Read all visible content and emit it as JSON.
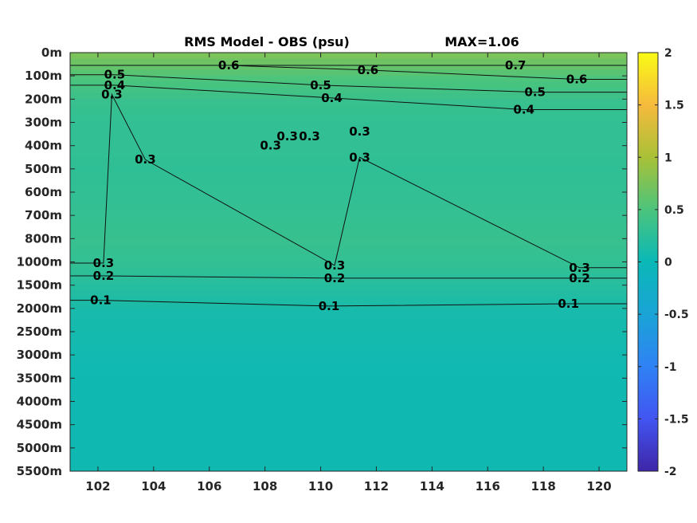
{
  "chart_data": {
    "type": "heatmap",
    "title": "RMS Model - OBS (psu)",
    "annotation": "MAX=1.06",
    "xlabel": "",
    "ylabel": "",
    "xlim": [
      101,
      121
    ],
    "x_ticks": [
      "102",
      "104",
      "106",
      "108",
      "110",
      "112",
      "114",
      "116",
      "118",
      "120"
    ],
    "x_tick_values": [
      102,
      104,
      106,
      108,
      110,
      112,
      114,
      116,
      118,
      120
    ],
    "y_ticks": [
      "0m",
      "100m",
      "200m",
      "300m",
      "400m",
      "500m",
      "600m",
      "700m",
      "800m",
      "1000m",
      "1500m",
      "2000m",
      "2500m",
      "3000m",
      "3500m",
      "4000m",
      "4500m",
      "5000m",
      "5500m"
    ],
    "colorbar": {
      "ticks": [
        "2",
        "1.5",
        "1",
        "0.5",
        "0",
        "-0.5",
        "-1",
        "-1.5",
        "-2"
      ],
      "tick_values": [
        2,
        1.5,
        1,
        0.5,
        0,
        -0.5,
        -1,
        -1.5,
        -2
      ],
      "range": [
        -2,
        2
      ],
      "colormap": "parula"
    },
    "depth_profile": [
      {
        "depth": "0m",
        "value": 0.75
      },
      {
        "depth": "100m",
        "value": 0.5
      },
      {
        "depth": "200m",
        "value": 0.35
      },
      {
        "depth": "300m",
        "value": 0.3
      },
      {
        "depth": "400m",
        "value": 0.3
      },
      {
        "depth": "500m",
        "value": 0.28
      },
      {
        "depth": "600m",
        "value": 0.3
      },
      {
        "depth": "700m",
        "value": 0.32
      },
      {
        "depth": "800m",
        "value": 0.35
      },
      {
        "depth": "1000m",
        "value": 0.3
      },
      {
        "depth": "1500m",
        "value": 0.2
      },
      {
        "depth": "2000m",
        "value": 0.1
      },
      {
        "depth": "2500m",
        "value": 0.08
      },
      {
        "depth": "3000m",
        "value": 0.05
      },
      {
        "depth": "3500m",
        "value": 0.04
      },
      {
        "depth": "4000m",
        "value": 0.04
      },
      {
        "depth": "4500m",
        "value": 0.04
      },
      {
        "depth": "5000m",
        "value": 0.04
      },
      {
        "depth": "5500m",
        "value": 0.04
      }
    ],
    "contours": [
      {
        "level": 0.7,
        "labels": [
          {
            "text": "0.7",
            "x": 117.0,
            "depth_index": 0.55
          }
        ]
      },
      {
        "level": 0.6,
        "labels": [
          {
            "text": "0.6",
            "x": 106.7,
            "depth_index": 0.55
          },
          {
            "text": "0.6",
            "x": 111.7,
            "depth_index": 0.75
          },
          {
            "text": "0.6",
            "x": 119.2,
            "depth_index": 1.15
          }
        ]
      },
      {
        "level": 0.5,
        "labels": [
          {
            "text": "0.5",
            "x": 102.6,
            "depth_index": 0.95
          },
          {
            "text": "0.5",
            "x": 110.0,
            "depth_index": 1.4
          },
          {
            "text": "0.5",
            "x": 117.7,
            "depth_index": 1.7
          }
        ]
      },
      {
        "level": 0.4,
        "labels": [
          {
            "text": "0.4",
            "x": 102.6,
            "depth_index": 1.4
          },
          {
            "text": "0.4",
            "x": 110.4,
            "depth_index": 1.95
          },
          {
            "text": "0.4",
            "x": 117.3,
            "depth_index": 2.45
          }
        ]
      },
      {
        "level": 0.3,
        "labels": [
          {
            "text": "0.3",
            "x": 102.5,
            "depth_index": 1.8
          },
          {
            "text": "0.3",
            "x": 108.2,
            "depth_index": 4.0
          },
          {
            "text": "0.3",
            "x": 108.8,
            "depth_index": 3.6
          },
          {
            "text": "0.3",
            "x": 109.6,
            "depth_index": 3.6
          },
          {
            "text": "0.3",
            "x": 111.4,
            "depth_index": 3.4
          },
          {
            "text": "0.3",
            "x": 111.4,
            "depth_index": 4.5
          },
          {
            "text": "0.3",
            "x": 103.7,
            "depth_index": 4.6
          },
          {
            "text": "0.3",
            "x": 102.2,
            "depth_index": 9.05
          },
          {
            "text": "0.3",
            "x": 110.5,
            "depth_index": 9.15
          },
          {
            "text": "0.3",
            "x": 119.3,
            "depth_index": 9.25
          }
        ]
      },
      {
        "level": 0.2,
        "labels": [
          {
            "text": "0.2",
            "x": 102.2,
            "depth_index": 9.6
          },
          {
            "text": "0.2",
            "x": 110.5,
            "depth_index": 9.7
          },
          {
            "text": "0.2",
            "x": 119.3,
            "depth_index": 9.7
          }
        ]
      },
      {
        "level": 0.1,
        "labels": [
          {
            "text": "0.1",
            "x": 102.1,
            "depth_index": 10.65
          },
          {
            "text": "0.1",
            "x": 110.3,
            "depth_index": 10.9
          },
          {
            "text": "0.1",
            "x": 118.9,
            "depth_index": 10.8
          }
        ]
      }
    ]
  }
}
